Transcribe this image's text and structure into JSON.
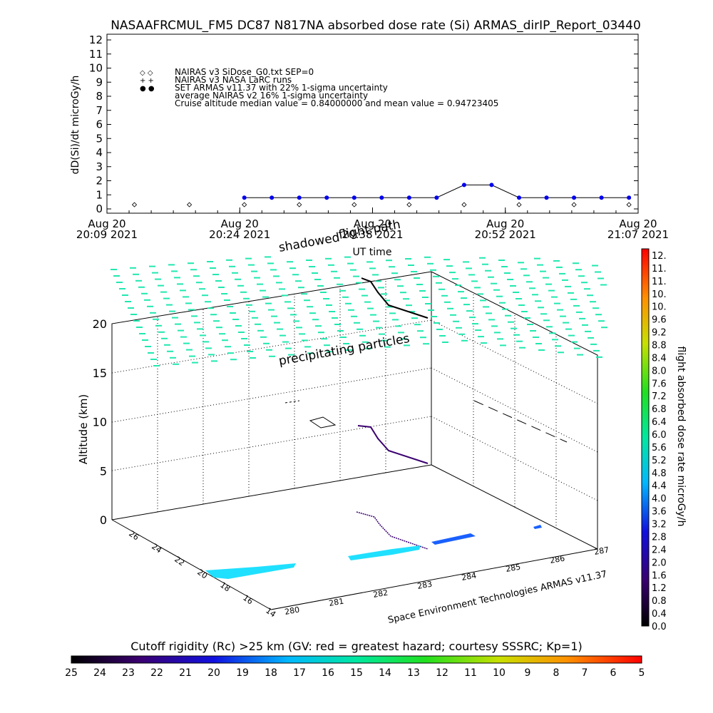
{
  "title": "NASAAFRCMUL_FM5 DC87 N817NA absorbed dose rate (Si) ARMAS_dirIP_Report_03440",
  "top_chart": {
    "ylabel": "dD(Si)/dt microGy/h",
    "yticks": [
      "0",
      "1",
      "2",
      "3",
      "4",
      "5",
      "6",
      "7",
      "8",
      "9",
      "10",
      "11",
      "12"
    ],
    "xticks": [
      {
        "l1": "Aug 20",
        "l2": "20:09 2021"
      },
      {
        "l1": "Aug 20",
        "l2": "20:24 2021"
      },
      {
        "l1": "Aug 20",
        "l2": "20:38 2021"
      },
      {
        "l1": "Aug 20",
        "l2": "20:52 2021"
      },
      {
        "l1": "Aug 20",
        "l2": "21:07 2021"
      }
    ],
    "xlabel": "UT time",
    "legend": [
      {
        "symbol": "◇ ◇",
        "text": "NAIRAS v3 SiDose_G0.txt SEP=0"
      },
      {
        "symbol": "+ +",
        "text": "NAIRAS v3 NASA LaRC runs"
      },
      {
        "symbol": "● ●",
        "text": "SET ARMAS v11.37 with 22% 1-sigma uncertainty"
      },
      {
        "symbol": "",
        "text": "average NAIRAS v2 16% 1-sigma uncertainty"
      },
      {
        "symbol": "",
        "text": "Cruise altitude median value = 0.84000000 and mean value = 0.94723405"
      }
    ],
    "colors": {
      "armas": "#0000ee",
      "line": "#000000"
    }
  },
  "chart_data": [
    {
      "type": "line",
      "title": "NASAAFRCMUL_FM5 DC87 N817NA absorbed dose rate (Si) ARMAS_dirIP_Report_03440",
      "xlabel": "UT time",
      "ylabel": "dD(Si)/dt microGy/h",
      "ylim": [
        0,
        12
      ],
      "xlim": [
        "20:09",
        "21:07"
      ],
      "series": [
        {
          "name": "SET ARMAS v11.37 with 22% 1-sigma uncertainty",
          "x": [
            "20:24",
            "20:27",
            "20:30",
            "20:33",
            "20:36",
            "20:39",
            "20:42",
            "20:45",
            "20:48",
            "20:51",
            "20:54",
            "20:57",
            "21:00",
            "21:03",
            "21:06"
          ],
          "y": [
            0.8,
            0.8,
            0.8,
            0.8,
            0.8,
            0.8,
            0.8,
            0.8,
            1.7,
            1.7,
            0.8,
            0.8,
            0.8,
            0.8,
            0.8
          ]
        },
        {
          "name": "NAIRAS v3 SiDose_G0.txt SEP=0",
          "x": [
            "20:12",
            "20:18",
            "20:24",
            "20:30",
            "20:36",
            "20:42",
            "20:48",
            "20:54",
            "21:00",
            "21:06"
          ],
          "y": [
            0.3,
            0.3,
            0.3,
            0.3,
            0.3,
            0.3,
            0.3,
            0.3,
            0.3,
            0.3
          ]
        }
      ]
    },
    {
      "type": "scatter",
      "xlabel": "",
      "ylabel": "Altitude (km)",
      "zticks": [
        "0",
        "5",
        "10",
        "15",
        "20"
      ],
      "lat_ticks": [
        "14",
        "16",
        "18",
        "20",
        "22",
        "24",
        "26"
      ],
      "lon_ticks": [
        "280",
        "281",
        "282",
        "283",
        "284",
        "285",
        "286",
        "287"
      ]
    }
  ],
  "annotations": {
    "shadowed": "shadowed",
    "flight_path": "flight path",
    "precipitating": "precipitating particles",
    "credit": "Space Environment Technologies ARMAS v11.37"
  },
  "colorbar_right": {
    "label": "flight absorbed dose rate microGy/h",
    "ticks": [
      "0.0",
      "0.4",
      "0.8",
      "1.2",
      "1.6",
      "2.0",
      "2.4",
      "2.8",
      "3.2",
      "3.6",
      "4.0",
      "4.4",
      "4.8",
      "5.2",
      "5.6",
      "6.0",
      "6.4",
      "6.8",
      "7.2",
      "7.6",
      "8.0",
      "8.4",
      "8.8",
      "9.2",
      "9.6",
      "10.",
      "10.",
      "11.",
      "11.",
      "12."
    ]
  },
  "colorbar_bottom": {
    "label": "Cutoff rigidity (Rc) >25 km (GV: red = greatest hazard; courtesy SSSRC; Kp=1)",
    "ticks": [
      "25",
      "24",
      "23",
      "22",
      "21",
      "20",
      "19",
      "18",
      "17",
      "16",
      "15",
      "14",
      "13",
      "12",
      "11",
      "10",
      "9",
      "8",
      "7",
      "6",
      "5"
    ]
  }
}
